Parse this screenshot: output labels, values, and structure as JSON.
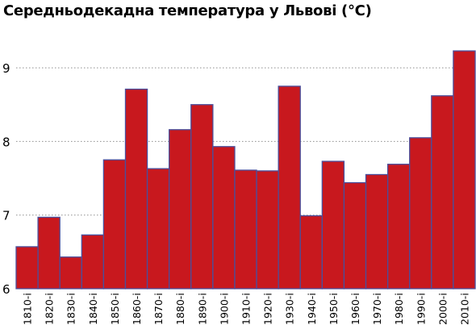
{
  "chart_data": {
    "type": "bar",
    "title": "Середньодекадна температура у Львові (°C)",
    "xlabel": "",
    "ylabel": "",
    "categories": [
      "1810-і",
      "1820-і",
      "1830-і",
      "1840-і",
      "1850-і",
      "1860-і",
      "1870-і",
      "1880-і",
      "1890-і",
      "1900-і",
      "1910-і",
      "1920-і",
      "1930-і",
      "1940-і",
      "1950-і",
      "1960-і",
      "1970-і",
      "1980-і",
      "1990-і",
      "2000-і",
      "2010-і"
    ],
    "values": [
      6.57,
      6.97,
      6.43,
      6.73,
      7.75,
      8.71,
      7.63,
      8.16,
      8.5,
      7.93,
      7.61,
      7.6,
      8.75,
      6.99,
      7.73,
      7.44,
      7.55,
      7.69,
      8.05,
      8.62,
      9.23
    ],
    "ylim": [
      6,
      9.5
    ],
    "yticks": [
      6,
      7,
      8,
      9
    ],
    "grid": true,
    "bar_color": "#c8181e",
    "bar_edge_color": "#4a4f9c",
    "grid_color": "#8f8f8f"
  }
}
